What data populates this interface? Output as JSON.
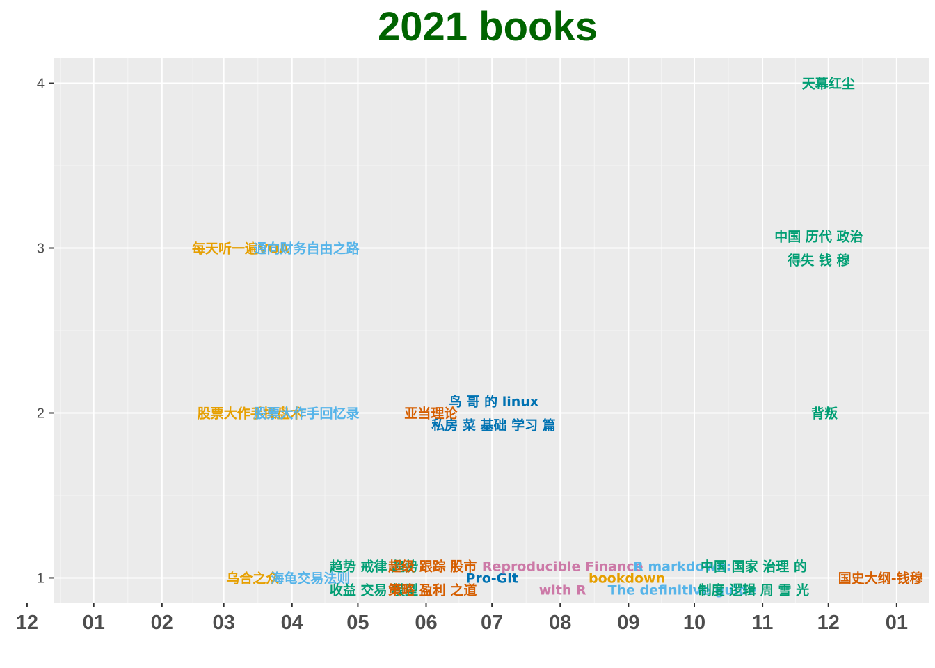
{
  "chart_data": {
    "type": "scatter",
    "title": "2021 books",
    "xlabel": "",
    "ylabel": "",
    "title_color": "#006400",
    "panel_background": "#ebebeb",
    "grid": true,
    "legend": "none",
    "x_domain": [
      2020.95,
      2022.04
    ],
    "x_ticks": [
      {
        "x": 2020.917,
        "label": "12"
      },
      {
        "x": 2021.0,
        "label": "01"
      },
      {
        "x": 2021.085,
        "label": "02"
      },
      {
        "x": 2021.162,
        "label": "03"
      },
      {
        "x": 2021.247,
        "label": "04"
      },
      {
        "x": 2021.329,
        "label": "05"
      },
      {
        "x": 2021.414,
        "label": "06"
      },
      {
        "x": 2021.496,
        "label": "07"
      },
      {
        "x": 2021.581,
        "label": "08"
      },
      {
        "x": 2021.666,
        "label": "09"
      },
      {
        "x": 2021.748,
        "label": "10"
      },
      {
        "x": 2021.833,
        "label": "11"
      },
      {
        "x": 2021.915,
        "label": "12"
      },
      {
        "x": 2022.0,
        "label": "01"
      }
    ],
    "y_ticks": [
      1,
      2,
      3,
      4
    ],
    "ylim": [
      0.85,
      4.15
    ],
    "palette": {
      "orange": "#e69f00",
      "skyblue": "#56b4e9",
      "green": "#009e73",
      "vermillion": "#d55e00",
      "blue": "#0072b2",
      "pink": "#cc79a7"
    },
    "points": [
      {
        "x": 2021.915,
        "y": 4,
        "lines": [
          "天幕红尘"
        ],
        "color": "green"
      },
      {
        "x": 2021.903,
        "y": 3,
        "lines": [
          "中国 历代 政治",
          "得失 钱 穆"
        ],
        "color": "green"
      },
      {
        "x": 2021.183,
        "y": 3,
        "lines": [
          "每天听一遍VOA"
        ],
        "color": "orange"
      },
      {
        "x": 2021.265,
        "y": 3,
        "lines": [
          "通向财务自由之路"
        ],
        "color": "skyblue"
      },
      {
        "x": 2021.91,
        "y": 2,
        "lines": [
          "背叛"
        ],
        "color": "green"
      },
      {
        "x": 2021.195,
        "y": 2,
        "lines": [
          "股票大作手操盘术"
        ],
        "color": "orange"
      },
      {
        "x": 2021.265,
        "y": 2,
        "lines": [
          "股票大作手回忆录"
        ],
        "color": "skyblue"
      },
      {
        "x": 2021.42,
        "y": 2,
        "lines": [
          "亚当理论"
        ],
        "color": "vermillion"
      },
      {
        "x": 2021.498,
        "y": 2,
        "lines": [
          "鸟 哥 的 linux",
          "私房 菜 基础 学习 篇"
        ],
        "color": "blue"
      },
      {
        "x": 2021.198,
        "y": 1,
        "lines": [
          "乌合之众"
        ],
        "color": "orange"
      },
      {
        "x": 2021.27,
        "y": 1,
        "lines": [
          "海龟交易法则"
        ],
        "color": "skyblue"
      },
      {
        "x": 2021.349,
        "y": 1,
        "lines": [
          "趋势 戒律 趋势",
          "收益 交易 模型"
        ],
        "color": "green"
      },
      {
        "x": 2021.422,
        "y": 1,
        "lines": [
          "超级 跟踪 股市",
          "策略 盈利 之道"
        ],
        "color": "vermillion"
      },
      {
        "x": 2021.496,
        "y": 1,
        "lines": [
          "Pro-Git"
        ],
        "color": "blue"
      },
      {
        "x": 2021.584,
        "y": 1,
        "lines": [
          "Reproducible Finance",
          "with R"
        ],
        "color": "pink"
      },
      {
        "x": 2021.664,
        "y": 1,
        "lines": [
          "bookdown"
        ],
        "color": "orange"
      },
      {
        "x": 2021.733,
        "y": 1,
        "lines": [
          "R markdown:",
          "The definitive guide"
        ],
        "color": "skyblue"
      },
      {
        "x": 2021.822,
        "y": 1,
        "lines": [
          "中国 国家 治理 的",
          "制度 逻辑 周 雪 光"
        ],
        "color": "green"
      },
      {
        "x": 2021.98,
        "y": 1,
        "lines": [
          "国史大纲-钱穆"
        ],
        "color": "vermillion"
      }
    ]
  }
}
